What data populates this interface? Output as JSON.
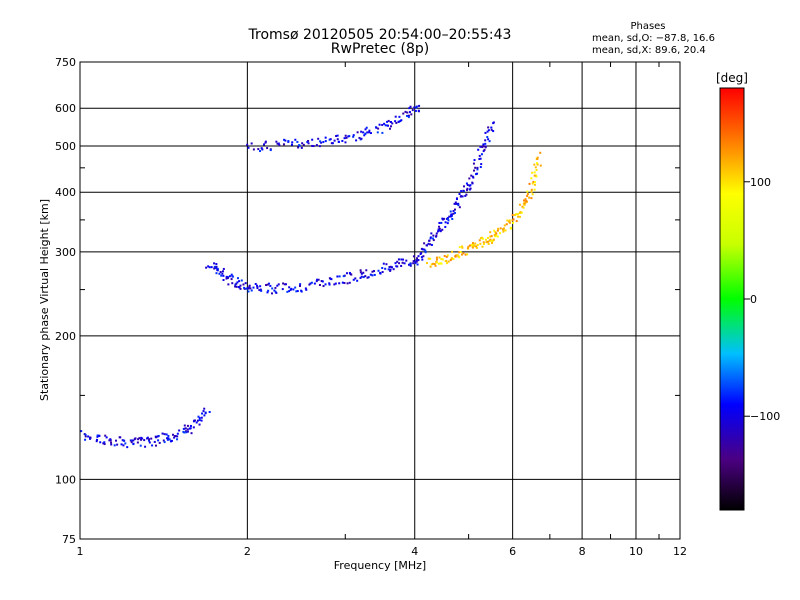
{
  "header": {
    "title_line1": "Tromsø 20120505 20:54:00–20:55:43",
    "title_line2": "RwPretec (8p)",
    "phases_title": "Phases",
    "phases_stat_o": "mean, sd,O: −87.8, 16.6",
    "phases_stat_x": "mean, sd,X:  89.6, 20.4"
  },
  "chart_data": {
    "type": "scatter",
    "title": "Tromsø 20120505 20:54:00–20:55:43",
    "subtitle": "RwPretec (8p)",
    "xlabel": "Frequency [MHz]",
    "ylabel": "Stationary phase Virtual Height [km]",
    "x_scale": "log",
    "y_scale": "log",
    "xlim": [
      1,
      12
    ],
    "ylim": [
      75,
      750
    ],
    "x_ticks": [
      1,
      2,
      4,
      6,
      8,
      10,
      12
    ],
    "x_tick_labels": [
      "1",
      "2",
      "4",
      "6",
      "8",
      "10",
      "12"
    ],
    "y_ticks": [
      75,
      100,
      200,
      300,
      400,
      500,
      600,
      750
    ],
    "y_tick_labels": [
      "75",
      "100",
      "200",
      "300",
      "400",
      "500",
      "600",
      "750"
    ],
    "grid": true,
    "colorbar": {
      "label": "[deg]",
      "range": [
        -180,
        180
      ],
      "tick_values": [
        100,
        0,
        -100
      ],
      "tick_labels": [
        "100",
        "0",
        "−100"
      ]
    },
    "traces": [
      {
        "kind": "O-mode F2 trace (lower)",
        "phase": -100,
        "x": [
          1.7,
          1.8,
          1.9,
          2.0,
          2.2,
          2.4,
          2.7,
          3.0,
          3.3,
          3.6,
          3.9,
          4.1
        ],
        "y": [
          285,
          270,
          260,
          255,
          252,
          253,
          258,
          265,
          272,
          280,
          288,
          292
        ]
      },
      {
        "kind": "O-mode F2 trace (upper)",
        "phase": -100,
        "x": [
          4.1,
          4.3,
          4.5,
          4.7,
          4.9,
          5.1,
          5.3,
          5.5
        ],
        "y": [
          300,
          325,
          345,
          370,
          400,
          440,
          500,
          560
        ]
      },
      {
        "kind": "X-mode trace",
        "phase": 110,
        "x": [
          4.2,
          4.5,
          4.8,
          5.1,
          5.4,
          5.6,
          6.0,
          6.3,
          6.5,
          6.7
        ],
        "y": [
          285,
          290,
          300,
          310,
          320,
          330,
          350,
          380,
          420,
          480
        ]
      },
      {
        "kind": "Multi-hop echo",
        "phase": -100,
        "x": [
          2.0,
          2.3,
          2.6,
          2.9,
          3.2,
          3.5,
          3.8,
          4.1
        ],
        "y": [
          500,
          505,
          510,
          520,
          530,
          550,
          580,
          610
        ]
      },
      {
        "kind": "E/Es trace",
        "phase": -100,
        "x": [
          1.0,
          1.1,
          1.2,
          1.3,
          1.4,
          1.5,
          1.6,
          1.7
        ],
        "y": [
          125,
          122,
          120,
          120,
          122,
          125,
          130,
          140
        ]
      }
    ]
  }
}
